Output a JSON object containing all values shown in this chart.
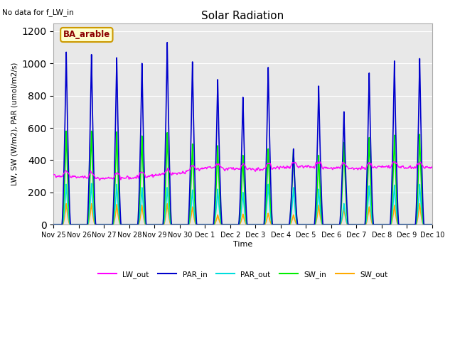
{
  "title": "Solar Radiation",
  "top_left_text": "No data for f_LW_in",
  "legend_label_text": "BA_arable",
  "ylabel": "LW, SW (W/m2), PAR (umol/m2/s)",
  "xlabel": "Time",
  "ylim": [
    0,
    1250
  ],
  "yticks": [
    0,
    200,
    400,
    600,
    800,
    1000,
    1200
  ],
  "background_color": "#e8e8e8",
  "fig_background": "#ffffff",
  "series_colors": {
    "LW_out": "#ff00ff",
    "PAR_in": "#0000cc",
    "PAR_out": "#00dddd",
    "SW_in": "#00ee00",
    "SW_out": "#ffaa00"
  },
  "line_widths": {
    "LW_out": 1.0,
    "PAR_in": 1.2,
    "PAR_out": 1.2,
    "SW_in": 1.2,
    "SW_out": 1.2
  },
  "num_days": 15,
  "day_peak_par_in": [
    1070,
    1055,
    1035,
    1000,
    1130,
    1010,
    900,
    790,
    975,
    470,
    860,
    700,
    940,
    1015,
    1030
  ],
  "day_peak_sw_in": [
    580,
    580,
    575,
    550,
    570,
    500,
    490,
    430,
    470,
    465,
    430,
    510,
    540,
    555,
    560
  ],
  "day_peak_sw_out": [
    130,
    130,
    125,
    120,
    130,
    110,
    60,
    65,
    70,
    60,
    120,
    100,
    110,
    120,
    130
  ],
  "day_peak_par_out": [
    250,
    255,
    250,
    230,
    230,
    215,
    220,
    200,
    250,
    230,
    220,
    130,
    240,
    245,
    250
  ],
  "lw_base": [
    305,
    295,
    285,
    290,
    305,
    320,
    350,
    345,
    340,
    355,
    358,
    352,
    345,
    360,
    355
  ]
}
